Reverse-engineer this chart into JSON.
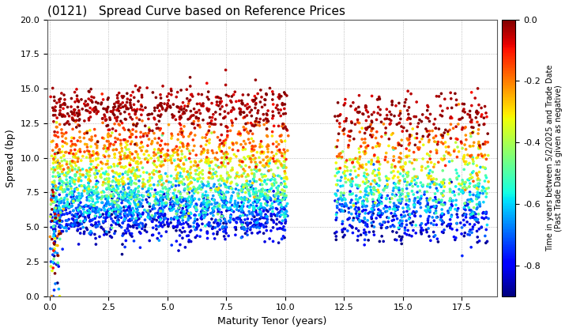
{
  "title": "(0121)   Spread Curve based on Reference Prices",
  "xlabel": "Maturity Tenor (years)",
  "ylabel": "Spread (bp)",
  "colorbar_label": "Time in years between 5/2/2025 and Trade Date\n(Past Trade Date is given as negative)",
  "xlim": [
    -0.1,
    19.0
  ],
  "ylim": [
    0,
    20
  ],
  "xticks": [
    0.0,
    2.5,
    5.0,
    7.5,
    10.0,
    12.5,
    15.0,
    17.5
  ],
  "yticks": [
    0.0,
    2.5,
    5.0,
    7.5,
    10.0,
    12.5,
    15.0,
    17.5,
    20.0
  ],
  "cmap": "jet",
  "clim": [
    -0.9,
    0.0
  ],
  "cticks": [
    0.0,
    -0.2,
    -0.4,
    -0.6,
    -0.8
  ],
  "background_color": "#ffffff",
  "grid_color": "#aaaaaa",
  "grid_linestyle": "dotted",
  "scatter_size": 7,
  "seed": 42,
  "gap_xmin": 10.3,
  "gap_xmax": 12.1
}
